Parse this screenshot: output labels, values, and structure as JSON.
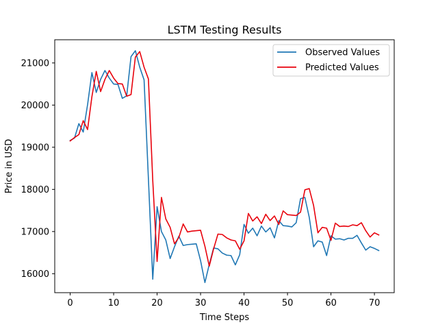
{
  "chart_data": {
    "type": "line",
    "title": "LSTM Testing Results",
    "xlabel": "Time Steps",
    "ylabel": "Price in USD",
    "xlim": [
      -3.55,
      74.55
    ],
    "ylim": [
      15550,
      21550
    ],
    "xticks": [
      0,
      10,
      20,
      30,
      40,
      50,
      60,
      70
    ],
    "yticks": [
      16000,
      17000,
      18000,
      19000,
      20000,
      21000
    ],
    "grid": false,
    "legend_position": "top-right",
    "x": [
      0,
      1,
      2,
      3,
      4,
      5,
      6,
      7,
      8,
      9,
      10,
      11,
      12,
      13,
      14,
      15,
      16,
      17,
      18,
      19,
      20,
      21,
      22,
      23,
      24,
      25,
      26,
      27,
      28,
      29,
      30,
      31,
      32,
      33,
      34,
      35,
      36,
      37,
      38,
      39,
      40,
      41,
      42,
      43,
      44,
      45,
      46,
      47,
      48,
      49,
      50,
      51,
      52,
      53,
      54,
      55,
      56,
      57,
      58,
      59,
      60,
      61,
      62,
      63,
      64,
      65,
      66,
      67,
      68,
      69,
      70,
      71
    ],
    "series": [
      {
        "name": "Observed Values",
        "color": "#1f77b4",
        "values": [
          19160,
          19220,
          19560,
          19360,
          20010,
          20770,
          20300,
          20610,
          20820,
          20640,
          20500,
          20490,
          20160,
          20220,
          21150,
          21290,
          20900,
          20600,
          18250,
          15870,
          17590,
          17000,
          16800,
          16360,
          16640,
          16890,
          16670,
          16690,
          16700,
          16710,
          16310,
          15790,
          16220,
          16610,
          16590,
          16490,
          16440,
          16430,
          16210,
          16450,
          17170,
          16960,
          17080,
          16900,
          17130,
          16990,
          17090,
          16850,
          17260,
          17140,
          17130,
          17110,
          17210,
          17780,
          17810,
          17340,
          16640,
          16780,
          16750,
          16430,
          16900,
          16820,
          16830,
          16800,
          16840,
          16840,
          16910,
          16730,
          16560,
          16640,
          16600,
          16550
        ]
      },
      {
        "name": "Predicted Values",
        "color": "#e8000b",
        "values": [
          19150,
          19230,
          19300,
          19630,
          19420,
          20200,
          20800,
          20320,
          20610,
          20820,
          20640,
          20510,
          20500,
          20210,
          20250,
          21140,
          21270,
          20900,
          20620,
          18210,
          16290,
          17810,
          17300,
          17100,
          16710,
          16860,
          17180,
          16990,
          17010,
          17020,
          17030,
          16650,
          16180,
          16590,
          16940,
          16930,
          16850,
          16800,
          16780,
          16580,
          16780,
          17430,
          17250,
          17350,
          17190,
          17410,
          17260,
          17370,
          17170,
          17490,
          17400,
          17390,
          17380,
          17460,
          17990,
          18020,
          17620,
          16970,
          17100,
          17080,
          16790,
          17200,
          17120,
          17130,
          17120,
          17160,
          17140,
          17210,
          17020,
          16870,
          16970,
          16920
        ]
      }
    ]
  }
}
